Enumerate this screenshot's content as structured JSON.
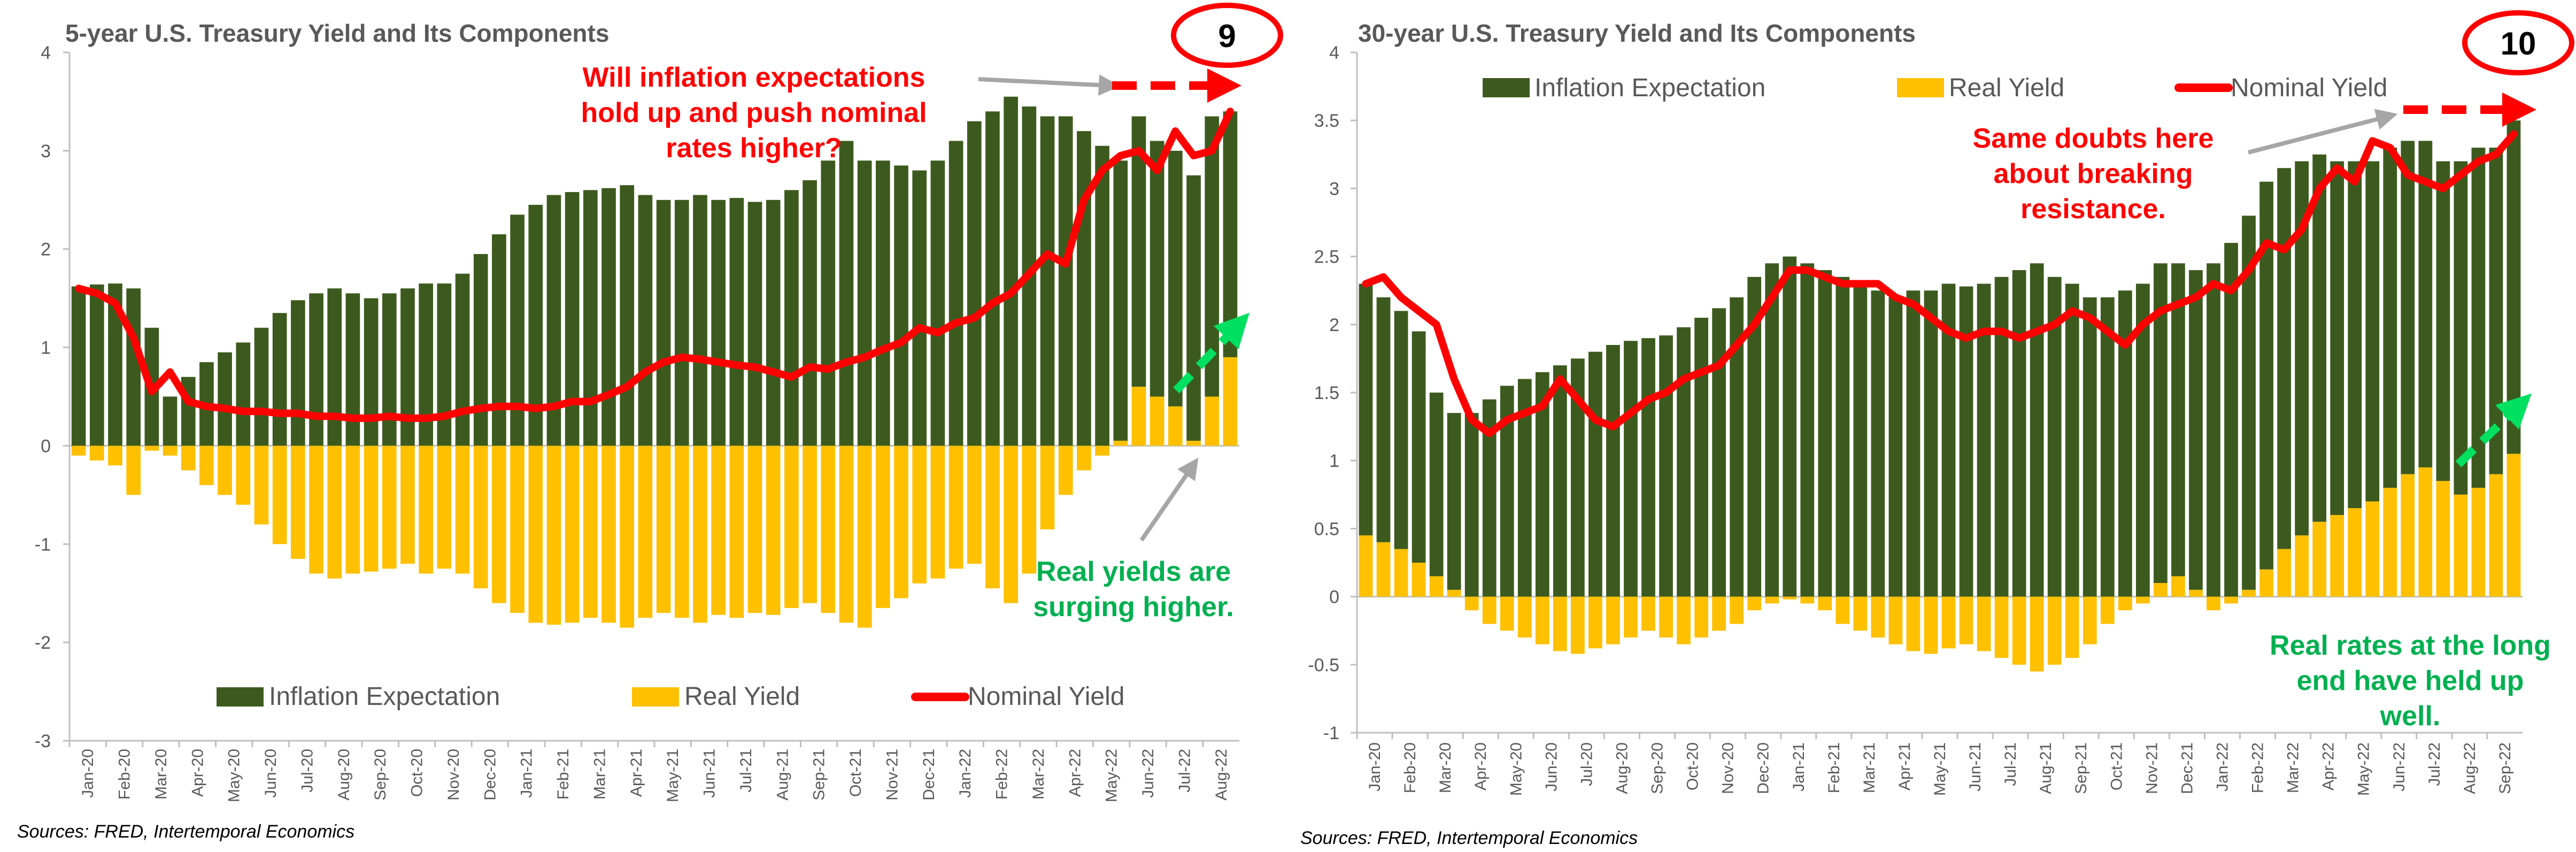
{
  "colors": {
    "inflation": "#3d5a1e",
    "real": "#ffc000",
    "nominal": "#ff0000",
    "axis": "#bfbfbf",
    "annotation_red": "#ff0000",
    "annotation_green": "#00b050",
    "arrow_gray": "#a6a6a6"
  },
  "chart_data": [
    {
      "type": "bar",
      "title": "5-year U.S. Treasury Yield and Its Components",
      "badge": "9",
      "source": "Sources: FRED, Intertemporal Economics",
      "ylim": [
        -3,
        4
      ],
      "yticks": [
        -3,
        -2,
        -1,
        0,
        1,
        2,
        3,
        4
      ],
      "x_labels": [
        "Jan-20",
        "Feb-20",
        "Mar-20",
        "Apr-20",
        "May-20",
        "Jun-20",
        "Jul-20",
        "Aug-20",
        "Sep-20",
        "Oct-20",
        "Nov-20",
        "Dec-20",
        "Jan-21",
        "Feb-21",
        "Mar-21",
        "Apr-21",
        "May-21",
        "Jun-21",
        "Jul-21",
        "Aug-21",
        "Sep-21",
        "Oct-21",
        "Nov-21",
        "Dec-21",
        "Jan-22",
        "Feb-22",
        "Mar-22",
        "Apr-22",
        "May-22",
        "Jun-22",
        "Jul-22",
        "Aug-22"
      ],
      "legend": [
        "Inflation Expectation",
        "Real Yield",
        "Nominal Yield"
      ],
      "legend_position": "bottom",
      "annotations": [
        {
          "text": "Will inflation expectations hold up and push nominal rates higher?",
          "lines": [
            "Will inflation expectations",
            "hold up and push nominal",
            "rates higher?"
          ],
          "color": "red"
        },
        {
          "text": "Real yields are surging higher.",
          "lines": [
            "Real yields are",
            "surging higher."
          ],
          "color": "green"
        }
      ],
      "x_month_index": [
        0,
        0.5,
        1,
        1.5,
        2,
        2.5,
        3,
        3.5,
        4,
        4.5,
        5,
        5.5,
        6,
        6.5,
        7,
        7.5,
        8,
        8.5,
        9,
        9.5,
        10,
        10.5,
        11,
        11.5,
        12,
        12.5,
        13,
        13.5,
        14,
        14.5,
        15,
        15.5,
        16,
        16.5,
        17,
        17.5,
        18,
        18.5,
        19,
        19.5,
        20,
        20.5,
        21,
        21.5,
        22,
        22.5,
        23,
        23.5,
        24,
        24.5,
        25,
        25.5,
        26,
        26.5,
        27,
        27.5,
        28,
        28.5,
        29,
        29.5,
        30,
        30.5,
        31,
        31.5
      ],
      "series": [
        {
          "name": "Inflation Expectation",
          "kind": "bar",
          "values": [
            1.62,
            1.64,
            1.65,
            1.6,
            1.2,
            0.5,
            0.7,
            0.85,
            0.95,
            1.05,
            1.2,
            1.35,
            1.48,
            1.55,
            1.6,
            1.55,
            1.5,
            1.55,
            1.6,
            1.65,
            1.65,
            1.75,
            1.95,
            2.15,
            2.35,
            2.45,
            2.55,
            2.58,
            2.6,
            2.62,
            2.65,
            2.55,
            2.5,
            2.5,
            2.55,
            2.5,
            2.52,
            2.48,
            2.5,
            2.6,
            2.7,
            2.9,
            3.1,
            2.9,
            2.9,
            2.85,
            2.8,
            2.9,
            3.1,
            3.3,
            3.4,
            3.55,
            3.45,
            3.35,
            3.35,
            3.2,
            3.05,
            2.85,
            2.75,
            2.6,
            2.6,
            2.7,
            2.85,
            2.5
          ]
        },
        {
          "name": "Real Yield",
          "kind": "bar",
          "values": [
            -0.1,
            -0.15,
            -0.2,
            -0.5,
            -0.05,
            -0.1,
            -0.25,
            -0.4,
            -0.5,
            -0.6,
            -0.8,
            -1.0,
            -1.15,
            -1.3,
            -1.35,
            -1.3,
            -1.28,
            -1.25,
            -1.2,
            -1.3,
            -1.25,
            -1.3,
            -1.45,
            -1.6,
            -1.7,
            -1.8,
            -1.82,
            -1.8,
            -1.75,
            -1.8,
            -1.85,
            -1.75,
            -1.7,
            -1.75,
            -1.8,
            -1.72,
            -1.75,
            -1.7,
            -1.72,
            -1.65,
            -1.6,
            -1.7,
            -1.8,
            -1.85,
            -1.65,
            -1.55,
            -1.4,
            -1.35,
            -1.25,
            -1.2,
            -1.45,
            -1.6,
            -1.3,
            -0.85,
            -0.5,
            -0.25,
            -0.1,
            0.05,
            0.6,
            0.5,
            0.4,
            0.05,
            0.5,
            0.9
          ]
        },
        {
          "name": "Nominal Yield",
          "kind": "line",
          "values": [
            1.6,
            1.55,
            1.45,
            1.1,
            0.55,
            0.75,
            0.45,
            0.4,
            0.38,
            0.35,
            0.35,
            0.33,
            0.33,
            0.3,
            0.3,
            0.28,
            0.28,
            0.3,
            0.28,
            0.28,
            0.3,
            0.35,
            0.38,
            0.4,
            0.4,
            0.38,
            0.4,
            0.45,
            0.45,
            0.52,
            0.6,
            0.75,
            0.85,
            0.9,
            0.88,
            0.85,
            0.82,
            0.8,
            0.75,
            0.7,
            0.8,
            0.78,
            0.85,
            0.9,
            0.98,
            1.05,
            1.2,
            1.15,
            1.25,
            1.3,
            1.45,
            1.55,
            1.75,
            1.95,
            1.85,
            2.5,
            2.8,
            2.95,
            3.0,
            2.8,
            3.2,
            2.95,
            3.0,
            3.4
          ]
        }
      ]
    },
    {
      "type": "bar",
      "title": "30-year U.S. Treasury Yield and Its Components",
      "badge": "10",
      "source": "Sources: FRED, Intertemporal Economics",
      "ylim": [
        -1,
        4
      ],
      "yticks": [
        -1,
        -0.5,
        0,
        0.5,
        1,
        1.5,
        2,
        2.5,
        3,
        3.5,
        4
      ],
      "x_labels": [
        "Jan-20",
        "Feb-20",
        "Mar-20",
        "Apr-20",
        "May-20",
        "Jun-20",
        "Jul-20",
        "Aug-20",
        "Sep-20",
        "Oct-20",
        "Nov-20",
        "Dec-20",
        "Jan-21",
        "Feb-21",
        "Mar-21",
        "Apr-21",
        "May-21",
        "Jun-21",
        "Jul-21",
        "Aug-21",
        "Sep-21",
        "Oct-21",
        "Nov-21",
        "Dec-21",
        "Jan-22",
        "Feb-22",
        "Mar-22",
        "Apr-22",
        "May-22",
        "Jun-22",
        "Jul-22",
        "Aug-22",
        "Sep-22"
      ],
      "legend": [
        "Inflation Expectation",
        "Real Yield",
        "Nominal Yield"
      ],
      "legend_position": "top",
      "annotations": [
        {
          "text": "Same doubts here about breaking resistance.",
          "lines": [
            "Same doubts here",
            "about breaking",
            "resistance."
          ],
          "color": "red"
        },
        {
          "text": "Real rates at the long end have held up well.",
          "lines": [
            "Real rates at the long",
            "end have held up",
            "well."
          ],
          "color": "green"
        }
      ],
      "x_month_index": [
        0,
        0.5,
        1,
        1.5,
        2,
        2.5,
        3,
        3.5,
        4,
        4.5,
        5,
        5.5,
        6,
        6.5,
        7,
        7.5,
        8,
        8.5,
        9,
        9.5,
        10,
        10.5,
        11,
        11.5,
        12,
        12.5,
        13,
        13.5,
        14,
        14.5,
        15,
        15.5,
        16,
        16.5,
        17,
        17.5,
        18,
        18.5,
        19,
        19.5,
        20,
        20.5,
        21,
        21.5,
        22,
        22.5,
        23,
        23.5,
        24,
        24.5,
        25,
        25.5,
        26,
        26.5,
        27,
        27.5,
        28,
        28.5,
        29,
        29.5,
        30,
        30.5,
        31,
        31.5,
        32,
        32.5
      ],
      "series": [
        {
          "name": "Inflation Expectation",
          "kind": "bar",
          "values": [
            1.85,
            1.8,
            1.75,
            1.7,
            1.35,
            1.3,
            1.35,
            1.45,
            1.55,
            1.6,
            1.65,
            1.7,
            1.75,
            1.8,
            1.85,
            1.88,
            1.9,
            1.92,
            1.98,
            2.05,
            2.12,
            2.2,
            2.35,
            2.45,
            2.5,
            2.45,
            2.4,
            2.35,
            2.3,
            2.25,
            2.2,
            2.25,
            2.25,
            2.3,
            2.28,
            2.3,
            2.35,
            2.4,
            2.45,
            2.35,
            2.3,
            2.2,
            2.2,
            2.25,
            2.3,
            2.35,
            2.3,
            2.35,
            2.45,
            2.6,
            2.75,
            2.85,
            2.8,
            2.75,
            2.7,
            2.6,
            2.55,
            2.5,
            2.5,
            2.45,
            2.4,
            2.35,
            2.45,
            2.5,
            2.4,
            2.45
          ]
        },
        {
          "name": "Real Yield",
          "kind": "bar",
          "values": [
            0.45,
            0.4,
            0.35,
            0.25,
            0.15,
            0.05,
            -0.1,
            -0.2,
            -0.25,
            -0.3,
            -0.35,
            -0.4,
            -0.42,
            -0.38,
            -0.35,
            -0.3,
            -0.25,
            -0.3,
            -0.35,
            -0.3,
            -0.25,
            -0.2,
            -0.1,
            -0.05,
            -0.02,
            -0.05,
            -0.1,
            -0.2,
            -0.25,
            -0.3,
            -0.35,
            -0.4,
            -0.42,
            -0.38,
            -0.35,
            -0.4,
            -0.45,
            -0.5,
            -0.55,
            -0.5,
            -0.45,
            -0.35,
            -0.2,
            -0.1,
            -0.05,
            0.1,
            0.15,
            0.05,
            -0.1,
            -0.05,
            0.05,
            0.2,
            0.35,
            0.45,
            0.55,
            0.6,
            0.65,
            0.7,
            0.8,
            0.9,
            0.95,
            0.85,
            0.75,
            0.8,
            0.9,
            1.05
          ]
        },
        {
          "name": "Nominal Yield",
          "kind": "line",
          "values": [
            2.3,
            2.35,
            2.2,
            2.1,
            2.0,
            1.6,
            1.3,
            1.2,
            1.3,
            1.35,
            1.4,
            1.6,
            1.45,
            1.3,
            1.25,
            1.35,
            1.45,
            1.5,
            1.6,
            1.65,
            1.7,
            1.85,
            2.0,
            2.2,
            2.4,
            2.4,
            2.35,
            2.3,
            2.3,
            2.3,
            2.2,
            2.15,
            2.05,
            1.95,
            1.9,
            1.95,
            1.95,
            1.9,
            1.95,
            2.0,
            2.1,
            2.05,
            1.95,
            1.85,
            2.0,
            2.1,
            2.15,
            2.2,
            2.3,
            2.25,
            2.4,
            2.6,
            2.55,
            2.7,
            3.0,
            3.15,
            3.05,
            3.35,
            3.3,
            3.1,
            3.05,
            3.0,
            3.1,
            3.2,
            3.25,
            3.4
          ]
        }
      ]
    }
  ]
}
